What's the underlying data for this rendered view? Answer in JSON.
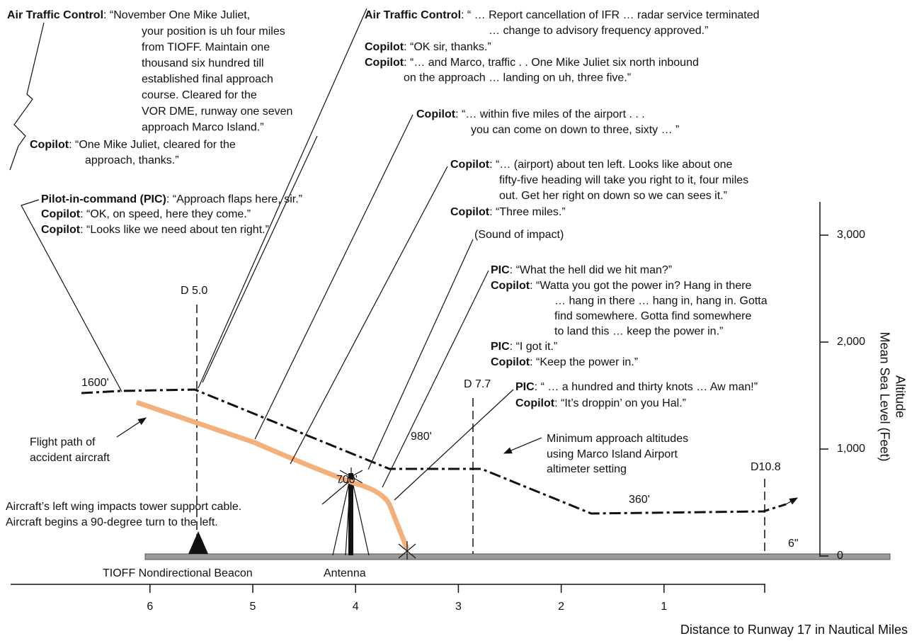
{
  "transcript": [
    {
      "speaker": "Air Traffic Control",
      "lines": [
        ": “November One Mike Juliet,",
        "your position is uh four miles",
        "from TIOFF. Maintain one",
        "thousand six hundred till",
        "established final approach",
        "course. Cleared for the",
        "VOR DME, runway one seven",
        "approach Marco Island.”"
      ]
    },
    {
      "speaker": "Copilot",
      "lines": [
        ": “One Mike Juliet, cleared for the",
        "approach, thanks.”"
      ]
    },
    {
      "speaker": "Air Traffic Control",
      "lines": [
        ": “ … Report cancellation of IFR … radar service terminated",
        "… change to advisory frequency approved.”"
      ]
    },
    {
      "speaker": "Copilot",
      "lines": [
        ": “OK sir, thanks.”"
      ]
    },
    {
      "speaker": "Copilot",
      "lines": [
        ": “… and Marco, traffic . . One Mike Juliet six north inbound",
        "on the approach … landing on uh, three five.”"
      ]
    },
    {
      "speaker": "Copilot",
      "lines": [
        ": “… within five miles of the airport . . .",
        "you can come on down to three, sixty … ”"
      ]
    },
    {
      "speaker": "Copilot",
      "lines": [
        ": “… (airport) about ten left. Looks like about one",
        "fifty-five heading will take you right to it, four miles",
        "out. Get her right on down so we can sees it.”"
      ]
    },
    {
      "speaker": "Copilot",
      "lines": [
        ": “Three miles.”"
      ]
    },
    {
      "speaker": "Pilot-in-command (PIC)",
      "lines": [
        ": “Approach flaps here, sir.”"
      ]
    },
    {
      "speaker": "Copilot",
      "lines": [
        ": “OK, on speed, here they come.”"
      ]
    },
    {
      "speaker": "Copilot",
      "lines": [
        ": “Looks like we need about ten right.”"
      ]
    },
    {
      "speaker": "PIC",
      "lines": [
        ": “What the hell did we hit man?”"
      ]
    },
    {
      "speaker": "Copilot",
      "lines": [
        ": “Watta you got the power in? Hang in there",
        "… hang in there … hang in, hang in. Gotta",
        "find somewhere. Gotta find somewhere",
        "to land this … keep the power in.”"
      ]
    },
    {
      "speaker": "PIC",
      "lines": [
        ": “I got it.”"
      ]
    },
    {
      "speaker": "Copilot",
      "lines": [
        ": “Keep the power in.”"
      ]
    },
    {
      "speaker": "PIC",
      "lines": [
        ": “ … a hundred and thirty knots … Aw man!”"
      ]
    },
    {
      "speaker": "Copilot",
      "lines": [
        ": “It’s droppin’ on you Hal.”"
      ]
    }
  ],
  "labels": {
    "sound": "(Sound of impact)",
    "fix_d50": "D 5.0",
    "fix_d77": "D 7.7",
    "fix_d108": "D10.8",
    "alt_1600": "1600'",
    "alt_980": "980'",
    "alt_700": "700'",
    "alt_360": "360'",
    "runway_mark": "6\"",
    "flight_path": [
      "Flight path of",
      "accident aircraft"
    ],
    "min_alt": [
      "Minimum approach altitudes",
      "using Marco Island Airport",
      "altimeter setting"
    ],
    "impact": [
      "Aircraft’s left wing impacts tower support cable.",
      "Aircraft begins a 90-degree turn to the left."
    ],
    "beacon": "TIOFF Nondirectional Beacon",
    "antenna": "Antenna"
  },
  "distance_axis": {
    "title": "Distance to Runway 17 in Nautical Miles",
    "ticks": [
      6,
      5,
      4,
      3,
      2,
      1
    ]
  },
  "altitude_axis": {
    "title": [
      "Altitude",
      "Mean Sea Level (Feet)"
    ],
    "ticks": [
      0,
      {
        "value": 1000,
        "label": "1,000"
      },
      {
        "value": 2000,
        "label": "2,000"
      },
      {
        "value": 3000,
        "label": "3,000"
      }
    ]
  }
}
